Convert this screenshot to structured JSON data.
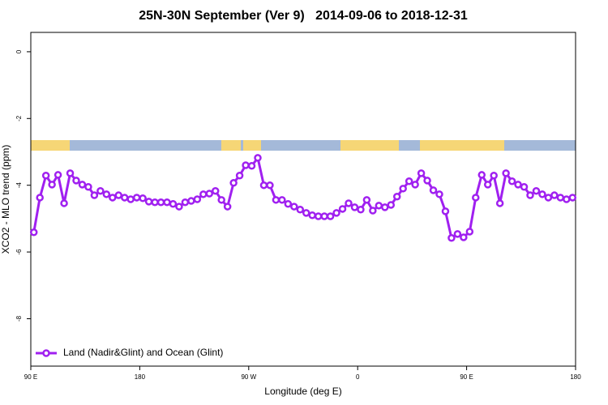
{
  "chart_data": {
    "type": "line",
    "title": "25N-30N September (Ver 9)   2014-09-06 to 2018-12-31",
    "x_label": "Longitude (deg E)",
    "y_label": "XCO2 - MLO trend (ppm)",
    "x": [
      92.5,
      97.5,
      102.5,
      107.5,
      112.5,
      117.5,
      122.5,
      127.5,
      132.5,
      137.5,
      142.5,
      147.5,
      152.5,
      157.5,
      162.5,
      167.5,
      172.5,
      177.5,
      182.5,
      187.5,
      192.5,
      197.5,
      202.5,
      207.5,
      212.5,
      217.5,
      222.5,
      227.5,
      232.5,
      237.5,
      242.5,
      247.5,
      252.5,
      257.5,
      262.5,
      267.5,
      272.5,
      277.5,
      282.5,
      287.5,
      292.5,
      297.5,
      302.5,
      307.5,
      312.5,
      317.5,
      322.5,
      327.5,
      332.5,
      337.5,
      342.5,
      347.5,
      352.5,
      357.5,
      362.5,
      367.5,
      372.5,
      377.5,
      382.5,
      387.5,
      392.5,
      397.5,
      402.5,
      407.5,
      412.5,
      417.5,
      422.5,
      427.5,
      432.5,
      437.5,
      442.5,
      447.5,
      452.5,
      457.5,
      462.5,
      467.5,
      472.5,
      477.5,
      482.5,
      487.5,
      492.5,
      497.5,
      502.5,
      507.5,
      512.5,
      517.5,
      522.5,
      527.5,
      532.5,
      537.5
    ],
    "series": [
      {
        "name": "Land (Nadir&Glint) and Ocean (Glint)",
        "color": "#a020f0",
        "values": [
          -5.41,
          -4.37,
          -3.71,
          -3.98,
          -3.69,
          -4.54,
          -3.64,
          -3.86,
          -3.98,
          -4.05,
          -4.3,
          -4.17,
          -4.27,
          -4.37,
          -4.3,
          -4.37,
          -4.42,
          -4.37,
          -4.39,
          -4.49,
          -4.51,
          -4.51,
          -4.51,
          -4.56,
          -4.64,
          -4.51,
          -4.47,
          -4.42,
          -4.27,
          -4.25,
          -4.17,
          -4.44,
          -4.64,
          -3.93,
          -3.71,
          -3.4,
          -3.42,
          -3.18,
          -4.0,
          -4.0,
          -4.44,
          -4.44,
          -4.56,
          -4.64,
          -4.73,
          -4.83,
          -4.9,
          -4.93,
          -4.93,
          -4.93,
          -4.83,
          -4.71,
          -4.54,
          -4.66,
          -4.73,
          -4.44,
          -4.76,
          -4.61,
          -4.66,
          -4.59,
          -4.34,
          -4.1,
          -3.88,
          -3.98,
          -3.64,
          -3.86,
          -4.15,
          -4.27,
          -4.78,
          -5.58,
          -5.46,
          -5.56,
          -5.39,
          -4.37,
          -3.69,
          -3.98,
          -3.71,
          -4.54,
          -3.64,
          -3.88,
          -3.98,
          -4.05,
          -4.3,
          -4.17,
          -4.27,
          -4.37,
          -4.3,
          -4.37,
          -4.42,
          -4.37
        ]
      }
    ],
    "xlim": [
      90,
      540
    ],
    "xticks": [
      {
        "value": 90,
        "label": "90 E"
      },
      {
        "value": 180,
        "label": "180"
      },
      {
        "value": 270,
        "label": "90 W"
      },
      {
        "value": 360,
        "label": "0"
      },
      {
        "value": 450,
        "label": "90 E"
      },
      {
        "value": 540,
        "label": "180"
      }
    ],
    "ylim": [
      -9.42,
      0.58
    ],
    "yticks": [
      0,
      -2,
      -4,
      -6,
      -8
    ],
    "legend": "bottom-left"
  }
}
